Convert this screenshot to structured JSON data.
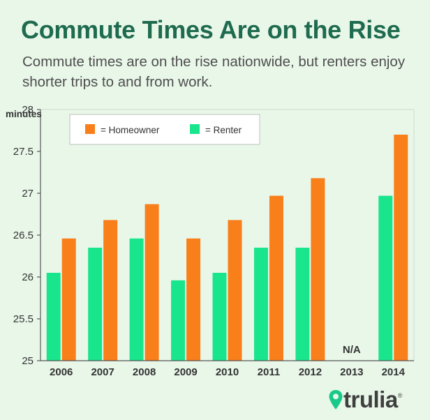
{
  "title": "Commute Times Are on the Rise",
  "subtitle": "Commute times are on the rise nationwide, but renters enjoy shorter trips to and from work.",
  "brand": "trulia",
  "brand_mark": "®",
  "chart_data": {
    "type": "bar",
    "ylabel": "minutes",
    "xlabel": "",
    "ylim": [
      25,
      28
    ],
    "yticks": [
      25,
      25.5,
      26,
      26.5,
      27,
      27.5,
      28
    ],
    "categories": [
      "2006",
      "2007",
      "2008",
      "2009",
      "2010",
      "2011",
      "2012",
      "2013",
      "2014"
    ],
    "series": [
      {
        "name": "Renter",
        "color": "#19e58d",
        "values": [
          26.05,
          26.35,
          26.46,
          25.96,
          26.05,
          26.35,
          26.35,
          null,
          26.97
        ]
      },
      {
        "name": "Homeowner",
        "color": "#f97f1a",
        "values": [
          26.46,
          26.68,
          26.87,
          26.46,
          26.68,
          26.97,
          27.18,
          null,
          27.7
        ]
      }
    ],
    "legend": {
      "position": "top-left",
      "entries": [
        {
          "label": "= Homeowner",
          "color": "#f97f1a"
        },
        {
          "label": "= Renter",
          "color": "#19e58d"
        }
      ]
    },
    "annotations": [
      {
        "category": "2013",
        "text": "N/A"
      }
    ],
    "grid": false
  }
}
